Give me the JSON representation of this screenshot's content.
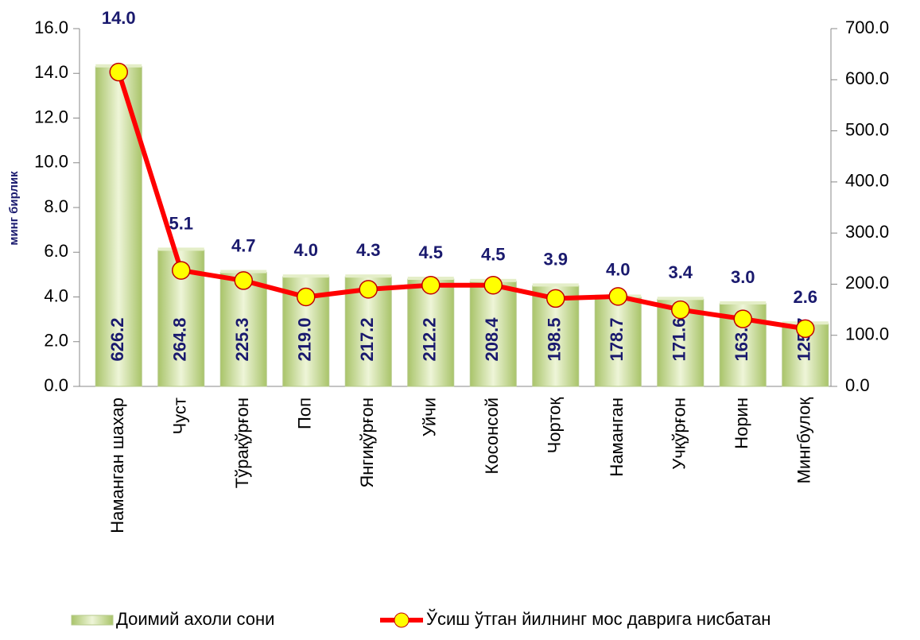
{
  "chart_data": {
    "type": "bar_line",
    "y_axis_label": "минг бирлик",
    "categories": [
      "Наманган шахар",
      "Чуст",
      "Тўрақўрғон",
      "Поп",
      "Янгиқўрғон",
      "Уйчи",
      "Косонсой",
      "Чортоқ",
      "Наманган",
      "Учқўрғон",
      "Норин",
      "Мингбулоқ"
    ],
    "series": [
      {
        "name": "Доимий ахоли сони",
        "color": "#c9dc9a",
        "values": [
          14.3,
          6.1,
          5.1,
          4.9,
          4.9,
          4.8,
          4.7,
          4.5,
          4.0,
          3.9,
          3.7,
          2.8
        ]
      },
      {
        "name": "Ўсиш ўтган йилнинг мос даврига нисбатан",
        "color": "#ff0000",
        "marker_color": "#ffff00",
        "axis": "y2",
        "values": [
          615,
          227,
          207,
          175,
          190,
          198,
          198,
          172,
          176,
          150,
          132,
          113
        ]
      }
    ],
    "top_labels": [
      "14.0",
      "5.1",
      "4.7",
      "4.0",
      "4.3",
      "4.5",
      "4.5",
      "3.9",
      "4.0",
      "3.4",
      "3.0",
      "2.6"
    ],
    "inner_labels": [
      "626.2",
      "264.8",
      "225.3",
      "219.0",
      "217.2",
      "212.2",
      "208.4",
      "198.5",
      "178.7",
      "171.6",
      "163.3",
      "125.7"
    ],
    "ylim": [
      0,
      16
    ],
    "yticks": [
      {
        "value": 0,
        "label": "0.0"
      },
      {
        "value": 2,
        "label": "2.0"
      },
      {
        "value": 4,
        "label": "4.0"
      },
      {
        "value": 6,
        "label": "6.0"
      },
      {
        "value": 8,
        "label": "8.0"
      },
      {
        "value": 10,
        "label": "10.0"
      },
      {
        "value": 12,
        "label": "12.0"
      },
      {
        "value": 14,
        "label": "14.0"
      },
      {
        "value": 16,
        "label": "16.0"
      }
    ],
    "y2lim": [
      0,
      700
    ],
    "y2ticks": [
      {
        "value": 0,
        "label": "0.0"
      },
      {
        "value": 100,
        "label": "100.0"
      },
      {
        "value": 200,
        "label": "200.0"
      },
      {
        "value": 300,
        "label": "300.0"
      },
      {
        "value": 400,
        "label": "400.0"
      },
      {
        "value": 500,
        "label": "500.0"
      },
      {
        "value": 600,
        "label": "600.0"
      },
      {
        "value": 700,
        "label": "700.0"
      }
    ],
    "legend": "bottom"
  }
}
